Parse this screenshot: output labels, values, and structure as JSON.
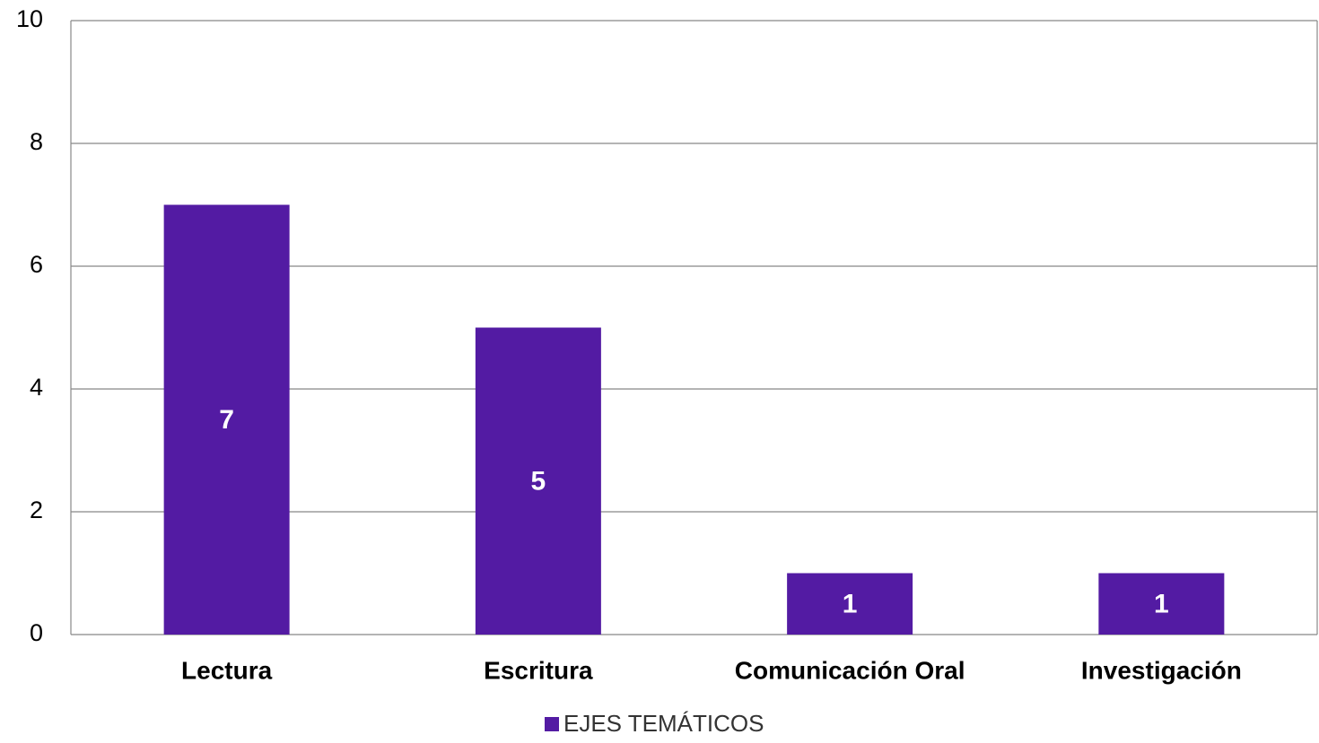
{
  "chart_data": {
    "type": "bar",
    "categories": [
      "Lectura",
      "Escritura",
      "Comunicación Oral",
      "Investigación"
    ],
    "series": [
      {
        "name": "EJES TEMÁTICOS",
        "color": "#531ba3",
        "values": [
          7,
          5,
          1,
          1
        ]
      }
    ],
    "ylim": [
      0,
      10
    ],
    "yticks": [
      0,
      2,
      4,
      6,
      8,
      10
    ],
    "grid": true,
    "legend": "bottom"
  }
}
